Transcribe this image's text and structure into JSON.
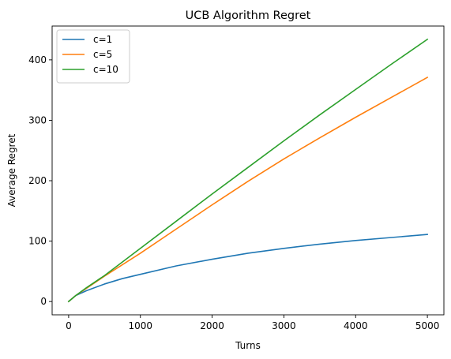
{
  "chart_data": {
    "type": "line",
    "title": "UCB Algorithm Regret",
    "xlabel": "Turns",
    "ylabel": "Average Regret",
    "xlim": [
      -230,
      5230
    ],
    "ylim": [
      -22,
      456
    ],
    "xticks": [
      0,
      1000,
      2000,
      3000,
      4000,
      5000
    ],
    "yticks": [
      0,
      100,
      200,
      300,
      400
    ],
    "grid": false,
    "legend": "top-left",
    "series": [
      {
        "name": "c=1",
        "color": "#1f77b4",
        "x": [
          0,
          100,
          250,
          500,
          750,
          1000,
          1500,
          2000,
          2500,
          3000,
          3500,
          4000,
          4500,
          5000
        ],
        "y": [
          0,
          10,
          18,
          29,
          38,
          45,
          59,
          70,
          80,
          88,
          95,
          101,
          106,
          111
        ]
      },
      {
        "name": "c=5",
        "color": "#ff7f0e",
        "x": [
          0,
          100,
          250,
          500,
          1000,
          1500,
          2000,
          2500,
          3000,
          3500,
          4000,
          4500,
          5000
        ],
        "y": [
          0,
          10,
          22,
          42,
          80,
          120,
          160,
          199,
          236,
          271,
          305,
          338,
          371
        ]
      },
      {
        "name": "c=10",
        "color": "#2ca02c",
        "x": [
          0,
          100,
          250,
          500,
          1000,
          1500,
          2000,
          2500,
          3000,
          3500,
          4000,
          4500,
          5000
        ],
        "y": [
          0,
          10,
          23,
          43,
          88,
          133,
          178,
          222,
          266,
          309,
          351,
          393,
          434
        ]
      }
    ]
  }
}
